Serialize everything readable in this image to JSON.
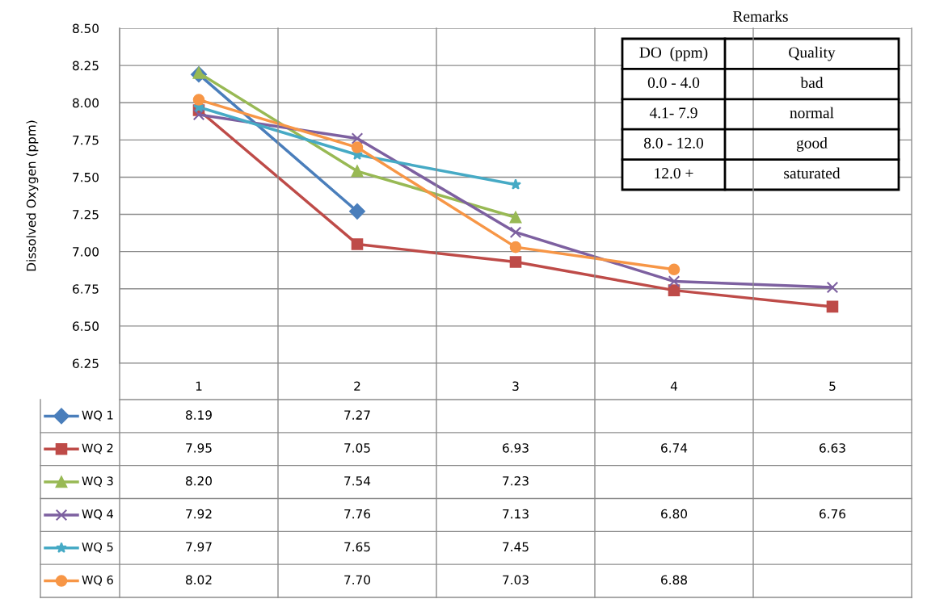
{
  "chart_data": {
    "type": "line",
    "ylabel": "Dissolved Oxygen (ppm)",
    "categories": [
      "1",
      "2",
      "3",
      "4",
      "5"
    ],
    "ylim": [
      6.25,
      8.5
    ],
    "yticks": [
      6.25,
      {
        "value": 6.5,
        "label": "6.50"
      },
      6.75,
      {
        "value": 7.0,
        "label": "7.00"
      },
      7.25,
      {
        "value": 7.5,
        "label": "7.50"
      },
      7.75,
      {
        "value": 8.0,
        "label": "8.00"
      },
      8.25,
      {
        "value": 8.5,
        "label": "8.50"
      }
    ],
    "grid": "y",
    "line_style": "solid",
    "legend": "bottom left",
    "series": [
      {
        "name": "WQ 1",
        "color": "#4a7ebb",
        "marker": "diamond",
        "values": [
          8.19,
          7.27,
          null,
          null,
          null
        ],
        "value_labels": [
          "8.19",
          "7.27",
          null,
          null,
          null
        ]
      },
      {
        "name": "WQ 2",
        "color": "#be4b48",
        "marker": "square",
        "values": [
          7.95,
          7.05,
          6.93,
          6.74,
          6.63
        ],
        "value_labels": [
          "7.95",
          "7.05",
          "6.93",
          "6.74",
          "6.63"
        ]
      },
      {
        "name": "WQ 3",
        "color": "#98b954",
        "marker": "triangle",
        "values": [
          8.2,
          7.54,
          7.23,
          null,
          null
        ],
        "value_labels": [
          "8.20",
          "7.54",
          "7.23",
          null,
          null
        ]
      },
      {
        "name": "WQ 4",
        "color": "#7d60a0",
        "marker": "cross",
        "values": [
          7.92,
          7.76,
          7.13,
          6.8,
          6.76
        ],
        "value_labels": [
          "7.92",
          "7.76",
          "7.13",
          "6.80",
          "6.76"
        ]
      },
      {
        "name": "WQ 5",
        "color": "#46aac5",
        "marker": "star",
        "values": [
          7.97,
          7.65,
          7.45,
          null,
          null
        ],
        "value_labels": [
          "7.97",
          "7.65",
          "7.45",
          null,
          null
        ]
      },
      {
        "name": "WQ 6",
        "color": "#f79646",
        "marker": "circle",
        "values": [
          8.02,
          7.7,
          7.03,
          6.88,
          null
        ],
        "value_labels": [
          "8.02",
          "7.70",
          "7.03",
          "6.88",
          null
        ]
      }
    ],
    "annotations": [
      "Remarks",
      "DO  (ppm)",
      "Quality",
      "0.0 - 4.0",
      "bad",
      "4.1- 7.9",
      "normal",
      "8.0 - 12.0",
      "good",
      "12.0 +",
      "saturated"
    ]
  }
}
